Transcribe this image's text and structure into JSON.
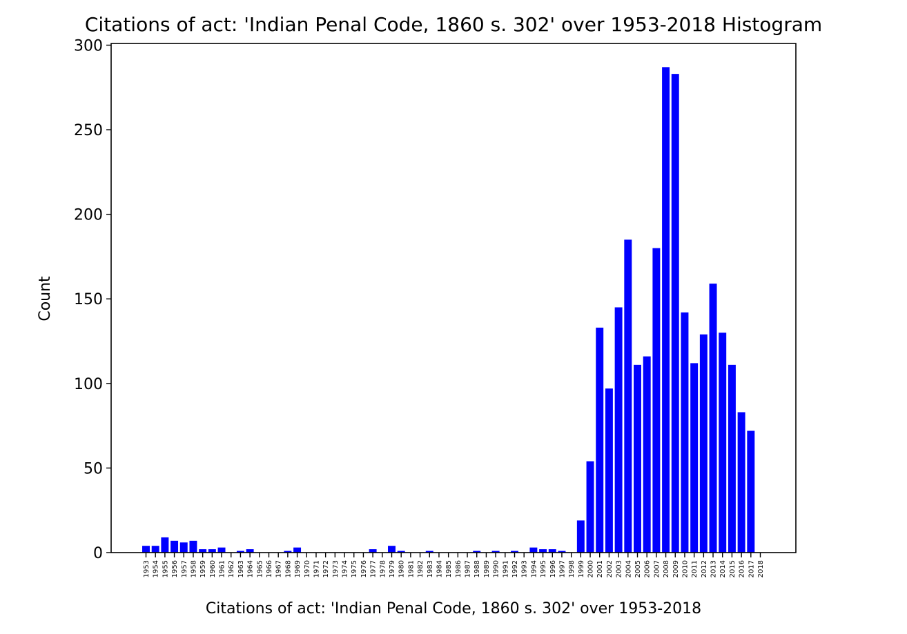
{
  "chart_data": {
    "type": "bar",
    "title": "Citations of act: 'Indian Penal Code, 1860 s. 302' over 1953-2018 Histogram",
    "xlabel": "Citations of act: 'Indian Penal Code, 1860 s. 302' over 1953-2018",
    "ylabel": "Count",
    "ylim": [
      0,
      301
    ],
    "yticks": [
      0,
      50,
      100,
      150,
      200,
      250,
      300
    ],
    "grid": false,
    "bar_color": "#0000ff",
    "categories": [
      "1953",
      "1954",
      "1955",
      "1956",
      "1957",
      "1958",
      "1959",
      "1960",
      "1961",
      "1962",
      "1963",
      "1964",
      "1965",
      "1966",
      "1967",
      "1968",
      "1969",
      "1970",
      "1971",
      "1972",
      "1973",
      "1974",
      "1975",
      "1976",
      "1977",
      "1978",
      "1979",
      "1980",
      "1981",
      "1982",
      "1983",
      "1984",
      "1985",
      "1986",
      "1987",
      "1988",
      "1989",
      "1990",
      "1991",
      "1992",
      "1993",
      "1994",
      "1995",
      "1996",
      "1997",
      "1998",
      "1999",
      "2000",
      "2001",
      "2002",
      "2003",
      "2004",
      "2005",
      "2006",
      "2007",
      "2008",
      "2009",
      "2010",
      "2011",
      "2012",
      "2013",
      "2014",
      "2015",
      "2016",
      "2017",
      "2018"
    ],
    "values": [
      4,
      4,
      9,
      7,
      6,
      7,
      2,
      2,
      3,
      0,
      1,
      2,
      0,
      0,
      0,
      1,
      3,
      0,
      0,
      0,
      0,
      0,
      0,
      0,
      2,
      0,
      4,
      1,
      0,
      0,
      1,
      0,
      0,
      0,
      0,
      1,
      0,
      1,
      0,
      1,
      0,
      3,
      2,
      2,
      1,
      0,
      19,
      54,
      133,
      97,
      145,
      185,
      111,
      116,
      180,
      287,
      283,
      142,
      112,
      129,
      159,
      130,
      111,
      83,
      72,
      0
    ]
  }
}
